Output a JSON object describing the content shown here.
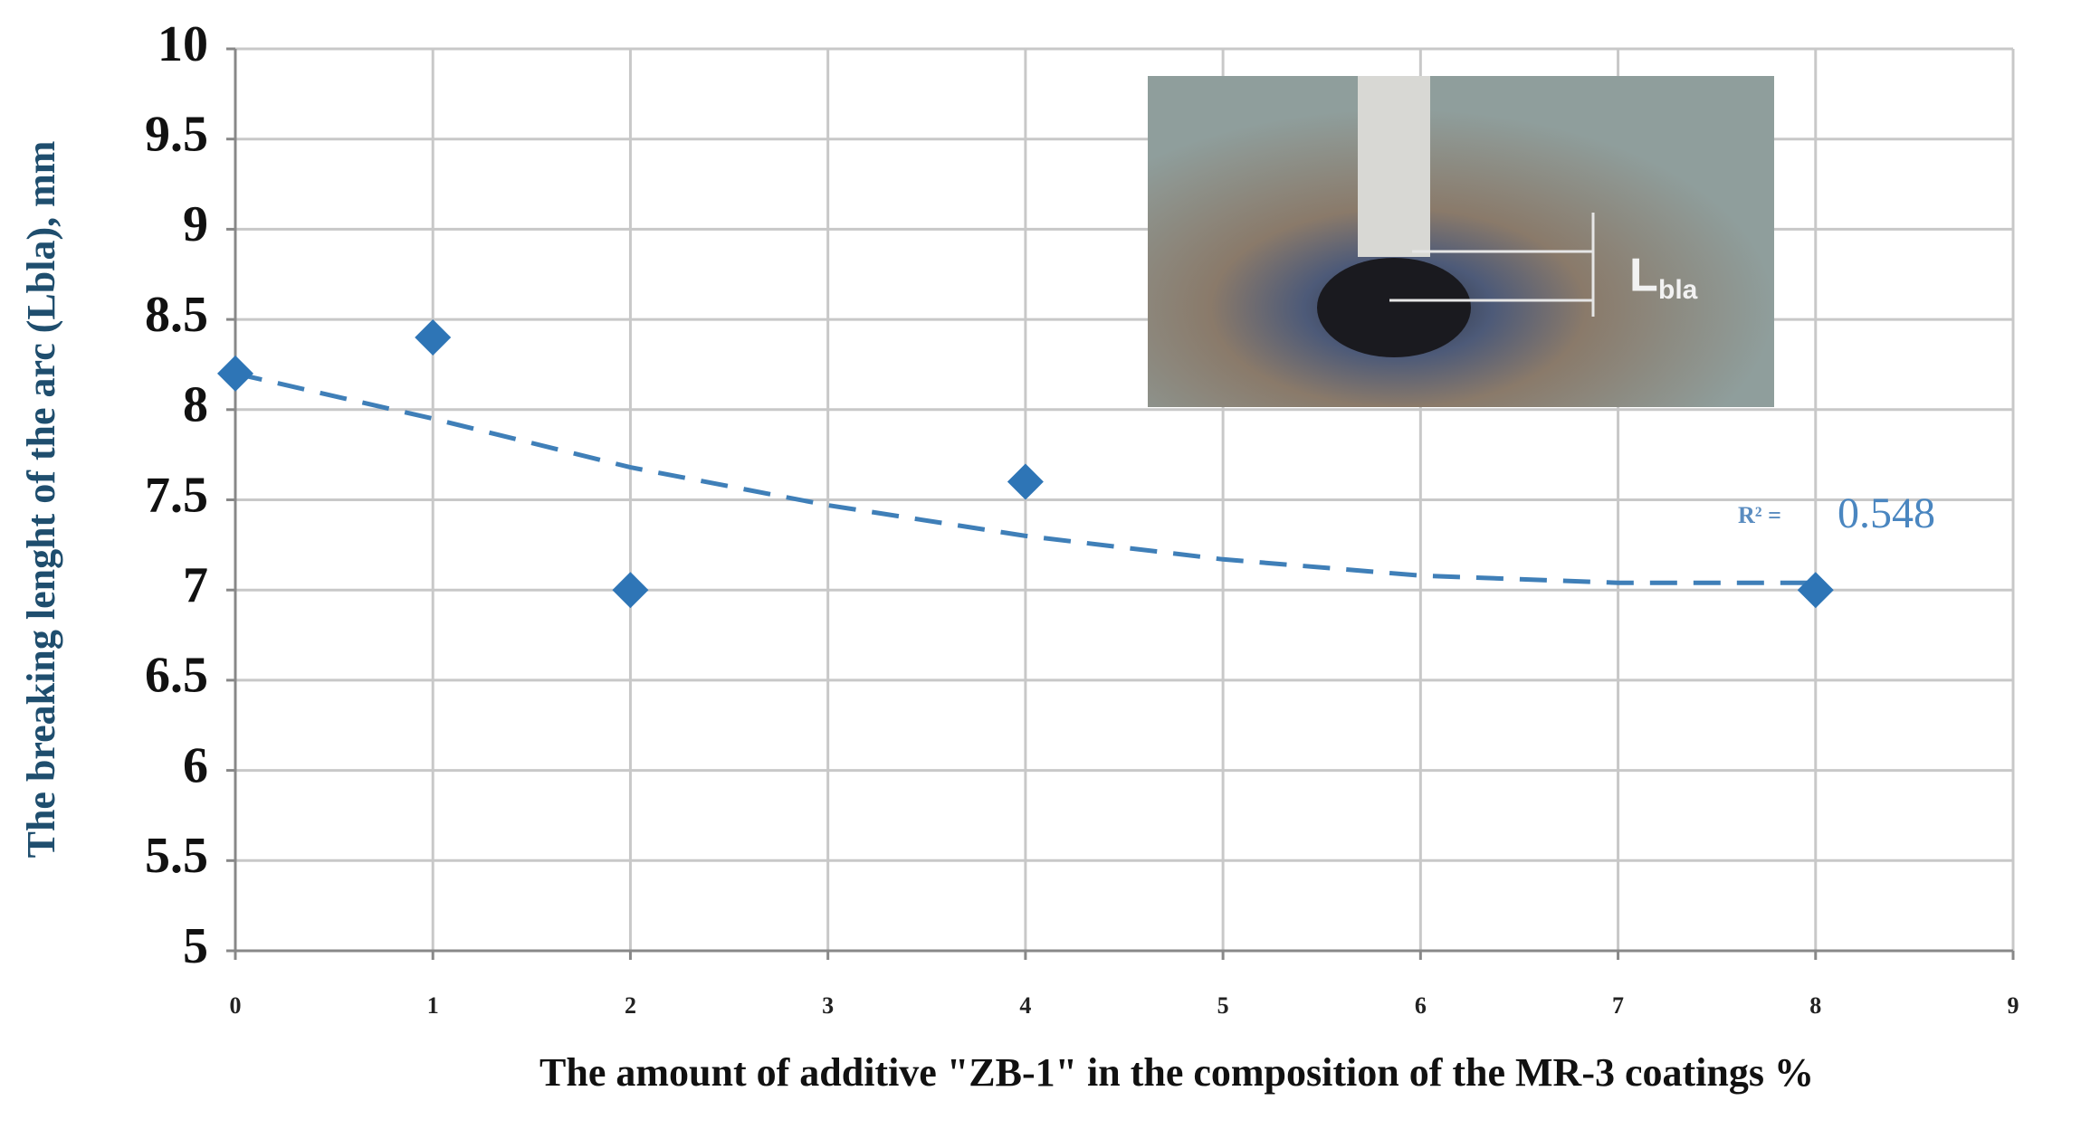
{
  "chart_data": {
    "type": "scatter",
    "x_label": "The amount of additive \"ZB-1\" in the composition of the MR-3 coatings %",
    "y_label": "The breaking lenght of the arc (Lbla), mm",
    "series": [
      {
        "color": "#2e75b6",
        "x": [
          0,
          1,
          2,
          4,
          8
        ],
        "values": [
          8.2,
          8.4,
          7.0,
          7.6,
          7.0
        ]
      }
    ],
    "trendline": {
      "color": "#3f7fb8",
      "x": [
        0,
        1,
        2,
        3,
        4,
        5,
        6,
        7,
        8
      ],
      "values": [
        8.2,
        7.95,
        7.68,
        7.47,
        7.3,
        7.17,
        7.08,
        7.04,
        7.04
      ]
    },
    "annotation": {
      "label": "R² =",
      "value": 0.548
    },
    "inset_label": {
      "main": "L",
      "sub": "bla"
    },
    "xlim": [
      0,
      9
    ],
    "xticks": [
      0,
      1,
      2,
      3,
      4,
      5,
      6,
      7,
      8,
      9
    ],
    "ylim": [
      5,
      10
    ],
    "yticks": [
      5,
      5.5,
      6,
      6.5,
      7,
      7.5,
      8,
      8.5,
      9,
      9.5,
      10
    ],
    "grid": true
  }
}
